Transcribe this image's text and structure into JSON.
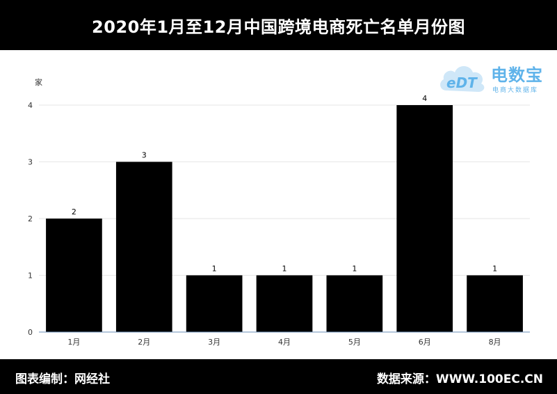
{
  "header": {
    "title": "2020年1月至12月中国跨境电商死亡名单月份图"
  },
  "footer": {
    "left": "图表编制：网经社",
    "right": "数据来源：WWW.100EC.CN"
  },
  "watermark": {
    "name": "电数宝",
    "sub": "电商大数据库",
    "logo_text": "eDT",
    "color": "#5fb3ea"
  },
  "chart_data": {
    "type": "bar",
    "categories": [
      "1月",
      "2月",
      "3月",
      "4月",
      "5月",
      "6月",
      "8月"
    ],
    "values": [
      2,
      3,
      1,
      1,
      1,
      4,
      1
    ],
    "ylabel": "家",
    "yticks": [
      0,
      1,
      2,
      3,
      4
    ],
    "ylim": [
      0,
      4
    ],
    "grid": true,
    "bar_color": "#000000"
  }
}
